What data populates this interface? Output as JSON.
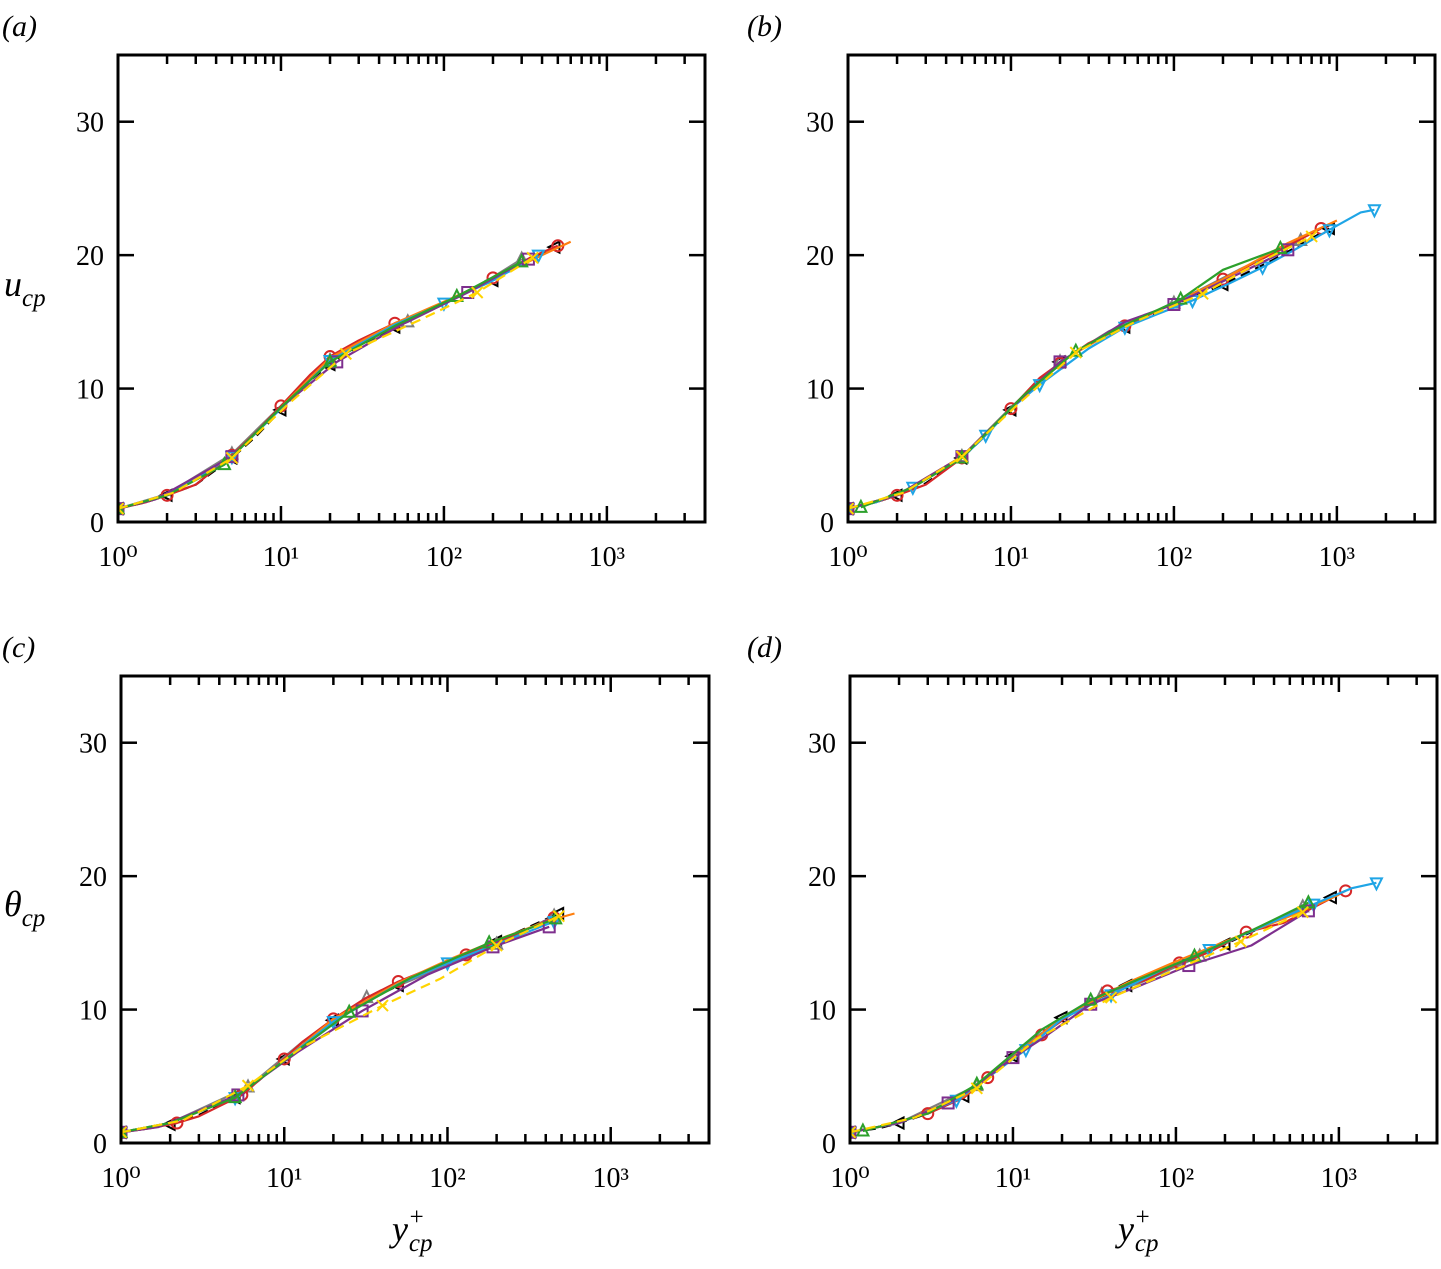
{
  "figure": {
    "panel_tags": [
      "(a)",
      "(b)",
      "(c)",
      "(d)"
    ],
    "y_labels": {
      "top_row": "u_cp",
      "bottom_row": "θ_cp"
    },
    "x_label": "y+_cp"
  },
  "chart_data": [
    {
      "type": "line",
      "panel": "(a)",
      "xlabel": "y+_cp",
      "ylabel": "u_cp",
      "xscale": "log",
      "xlim": [
        1,
        4000
      ],
      "ylim": [
        0,
        35
      ],
      "xticks": [
        "10^0",
        "10^1",
        "10^2",
        "10^3"
      ],
      "yticks": [
        "0",
        "10",
        "20",
        "30"
      ],
      "grid": false,
      "series": [
        {
          "color": "#000000",
          "marker": "triangle-left",
          "dashed": true,
          "x": [
            1,
            1.5,
            2,
            3,
            5,
            7,
            10,
            15,
            20,
            30,
            50,
            100,
            200,
            300,
            480
          ],
          "y": [
            1.0,
            1.5,
            2.0,
            2.8,
            4.8,
            6.4,
            8.4,
            10.6,
            11.8,
            13.2,
            14.6,
            16.4,
            18.1,
            19.3,
            20.6
          ]
        },
        {
          "color": "#7f7f7f",
          "marker": "triangle-up",
          "x": [
            1,
            2,
            5,
            10,
            20,
            30,
            60,
            150,
            300
          ],
          "y": [
            1.0,
            2.1,
            5.1,
            8.7,
            12.1,
            13.5,
            15.0,
            17.4,
            19.7
          ]
        },
        {
          "color": "#d62728",
          "marker": "circle",
          "x": [
            1,
            1.5,
            2,
            3,
            5,
            7,
            10,
            15,
            20,
            30,
            50,
            100,
            200,
            350,
            500
          ],
          "y": [
            1.0,
            1.5,
            2.0,
            2.8,
            5.0,
            6.7,
            8.7,
            11.0,
            12.4,
            13.6,
            14.9,
            16.4,
            18.3,
            19.9,
            20.7
          ]
        },
        {
          "color": "#ff7f0e",
          "marker": "none",
          "x": [
            1,
            2,
            5,
            10,
            20,
            50,
            100,
            200,
            400,
            600
          ],
          "y": [
            1.0,
            2.0,
            4.9,
            8.6,
            12.3,
            14.9,
            16.5,
            18.2,
            20.0,
            21.0
          ]
        },
        {
          "color": "#1fa5e6",
          "marker": "triangle-down",
          "x": [
            1,
            2,
            5,
            10,
            20,
            50,
            100,
            200,
            380
          ],
          "y": [
            1.0,
            2.0,
            4.9,
            8.5,
            12.1,
            14.8,
            16.4,
            18.1,
            20.0
          ]
        },
        {
          "color": "#7e2f8e",
          "marker": "square",
          "x": [
            1,
            1.7,
            5,
            10,
            22,
            55,
            140,
            330
          ],
          "y": [
            1.0,
            1.7,
            4.9,
            8.6,
            12.0,
            14.8,
            17.2,
            19.7
          ]
        },
        {
          "color": "#2ca02c",
          "marker": "triangle-up",
          "x": [
            1,
            2,
            4.5,
            10,
            20,
            50,
            120,
            300
          ],
          "y": [
            1.0,
            2.0,
            4.3,
            8.6,
            12.0,
            14.7,
            16.9,
            19.5
          ]
        },
        {
          "color": "#ffd400",
          "marker": "x",
          "dashed": true,
          "x": [
            1,
            2.2,
            5,
            11,
            25,
            70,
            160,
            350
          ],
          "y": [
            1.0,
            2.2,
            4.8,
            8.8,
            12.6,
            15.1,
            17.2,
            19.8
          ]
        }
      ]
    },
    {
      "type": "line",
      "panel": "(b)",
      "xlabel": "",
      "ylabel": "",
      "xscale": "log",
      "xlim": [
        1,
        4000
      ],
      "ylim": [
        0,
        35
      ],
      "xticks": [
        "10^0",
        "10^1",
        "10^2",
        "10^3"
      ],
      "yticks": [
        "0",
        "10",
        "20",
        "30"
      ],
      "grid": false,
      "series": [
        {
          "color": "#000000",
          "marker": "triangle-left",
          "dashed": true,
          "x": [
            1,
            1.5,
            2,
            3,
            5,
            7,
            10,
            15,
            20,
            30,
            50,
            100,
            200,
            400,
            900
          ],
          "y": [
            1.0,
            1.5,
            2.0,
            2.9,
            4.8,
            6.5,
            8.4,
            10.6,
            12.0,
            13.3,
            14.6,
            16.3,
            17.8,
            19.6,
            22.0
          ]
        },
        {
          "color": "#7f7f7f",
          "marker": "triangle-up",
          "x": [
            1,
            2,
            5,
            10,
            20,
            40,
            100,
            250,
            600
          ],
          "y": [
            1.0,
            2.0,
            4.9,
            8.6,
            12.0,
            14.3,
            16.4,
            18.9,
            21.1
          ]
        },
        {
          "color": "#d62728",
          "marker": "circle",
          "x": [
            1,
            1.5,
            2,
            3,
            5,
            7,
            10,
            15,
            20,
            30,
            50,
            100,
            200,
            400,
            800
          ],
          "y": [
            1.0,
            1.5,
            2.0,
            2.8,
            4.8,
            6.6,
            8.5,
            10.8,
            11.9,
            13.4,
            14.7,
            16.4,
            18.2,
            20.1,
            22.0
          ]
        },
        {
          "color": "#ff7f0e",
          "marker": "none",
          "x": [
            1,
            2,
            5,
            10,
            20,
            50,
            100,
            200,
            500,
            1000
          ],
          "y": [
            1.0,
            2.0,
            4.9,
            8.5,
            12.0,
            14.8,
            16.4,
            18.2,
            20.9,
            22.6
          ]
        },
        {
          "color": "#1fa5e6",
          "marker": "triangle-down",
          "x": [
            1,
            1.5,
            2.5,
            5,
            7,
            10,
            15,
            30,
            50,
            80,
            130,
            220,
            350,
            550,
            900,
            1400,
            1700
          ],
          "y": [
            1.0,
            1.5,
            2.6,
            4.8,
            6.5,
            8.5,
            10.3,
            13.0,
            14.6,
            15.6,
            16.6,
            17.9,
            19.1,
            20.4,
            21.9,
            23.2,
            23.4
          ]
        },
        {
          "color": "#7e2f8e",
          "marker": "square",
          "x": [
            1,
            2,
            5,
            10,
            20,
            50,
            100,
            250,
            500
          ],
          "y": [
            1.0,
            2.0,
            4.9,
            8.5,
            12.0,
            15.0,
            16.3,
            18.6,
            20.4
          ]
        },
        {
          "color": "#2ca02c",
          "marker": "triangle-up",
          "x": [
            1.2,
            2.5,
            5,
            12,
            25,
            45,
            110,
            200,
            450
          ],
          "y": [
            1.1,
            2.6,
            4.8,
            9.5,
            12.8,
            14.5,
            16.7,
            18.9,
            20.5
          ]
        },
        {
          "color": "#ffd400",
          "marker": "x",
          "dashed": true,
          "x": [
            1,
            2.2,
            5,
            11,
            25,
            60,
            150,
            350,
            700
          ],
          "y": [
            1.0,
            2.2,
            4.9,
            8.8,
            12.7,
            15.1,
            17.1,
            19.6,
            21.4
          ]
        }
      ]
    },
    {
      "type": "line",
      "panel": "(c)",
      "xlabel": "y+_cp",
      "ylabel": "θ_cp",
      "xscale": "log",
      "xlim": [
        1,
        4000
      ],
      "ylim": [
        0,
        35
      ],
      "xticks": [
        "10^0",
        "10^1",
        "10^2",
        "10^3"
      ],
      "yticks": [
        "0",
        "10",
        "20",
        "30"
      ],
      "grid": false,
      "series": [
        {
          "color": "#000000",
          "marker": "triangle-left",
          "dashed": true,
          "x": [
            1,
            1.5,
            2,
            3,
            5,
            7,
            10,
            15,
            20,
            30,
            50,
            100,
            200,
            480
          ],
          "y": [
            0.8,
            1.1,
            1.4,
            2.1,
            3.4,
            4.7,
            6.3,
            8.1,
            9.2,
            10.5,
            11.8,
            13.5,
            15.1,
            17.2
          ]
        },
        {
          "color": "#7f7f7f",
          "marker": "triangle-up",
          "x": [
            1,
            2,
            6,
            13,
            32,
            60,
            200,
            450
          ],
          "y": [
            0.8,
            1.5,
            4.2,
            7.6,
            10.9,
            12.2,
            14.9,
            17.0
          ]
        },
        {
          "color": "#d62728",
          "marker": "circle",
          "x": [
            1,
            1.5,
            2.2,
            3,
            5.5,
            7,
            10,
            13,
            20,
            31,
            50,
            80,
            130,
            215,
            450
          ],
          "y": [
            0.8,
            1.1,
            1.5,
            2.0,
            3.6,
            4.7,
            6.3,
            7.6,
            9.3,
            10.8,
            12.1,
            13.1,
            14.1,
            15.2,
            16.9
          ]
        },
        {
          "color": "#ff7f0e",
          "marker": "none",
          "x": [
            1,
            2,
            5,
            10,
            20,
            50,
            100,
            200,
            400,
            600
          ],
          "y": [
            0.8,
            1.5,
            3.4,
            6.2,
            9.3,
            12.0,
            13.7,
            15.2,
            16.6,
            17.2
          ]
        },
        {
          "color": "#1fa5e6",
          "marker": "triangle-down",
          "x": [
            1,
            2,
            5,
            10,
            20,
            50,
            100,
            200,
            450
          ],
          "y": [
            0.8,
            1.5,
            3.4,
            6.2,
            9.1,
            11.9,
            13.5,
            14.9,
            16.6
          ]
        },
        {
          "color": "#7e2f8e",
          "marker": "square",
          "x": [
            1,
            1.7,
            5.2,
            12,
            30,
            75,
            190,
            420
          ],
          "y": [
            0.8,
            1.2,
            3.6,
            6.8,
            9.9,
            12.6,
            14.7,
            16.2
          ]
        },
        {
          "color": "#2ca02c",
          "marker": "triangle-up",
          "x": [
            1,
            2,
            5,
            12,
            25,
            60,
            180,
            460
          ],
          "y": [
            0.8,
            1.5,
            3.4,
            6.9,
            9.8,
            12.4,
            15.0,
            16.8
          ]
        },
        {
          "color": "#ffd400",
          "marker": "x",
          "dashed": true,
          "x": [
            1,
            2.4,
            6,
            13,
            40,
            90,
            200,
            480
          ],
          "y": [
            0.8,
            1.7,
            4.3,
            7.2,
            10.3,
            12.3,
            14.8,
            17.0
          ]
        }
      ]
    },
    {
      "type": "line",
      "panel": "(d)",
      "xlabel": "y+_cp",
      "ylabel": "",
      "xscale": "log",
      "xlim": [
        1,
        4000
      ],
      "ylim": [
        0,
        35
      ],
      "xticks": [
        "10^0",
        "10^1",
        "10^2",
        "10^3"
      ],
      "yticks": [
        "0",
        "10",
        "20",
        "30"
      ],
      "grid": false,
      "series": [
        {
          "color": "#000000",
          "marker": "triangle-left",
          "dashed": true,
          "x": [
            1,
            1.5,
            2,
            3,
            5,
            7,
            10,
            15,
            20,
            30,
            50,
            100,
            200,
            400,
            900
          ],
          "y": [
            0.8,
            1.1,
            1.5,
            2.2,
            3.5,
            5.0,
            6.5,
            8.2,
            9.4,
            10.6,
            11.8,
            13.3,
            14.9,
            16.6,
            18.4
          ]
        },
        {
          "color": "#7f7f7f",
          "marker": "triangle-up",
          "x": [
            1,
            2,
            6,
            14,
            35,
            60,
            140,
            300,
            600
          ],
          "y": [
            0.8,
            1.5,
            4.3,
            8.0,
            11.1,
            12.0,
            14.0,
            16.0,
            17.7
          ]
        },
        {
          "color": "#d62728",
          "marker": "circle",
          "x": [
            1,
            1.5,
            3,
            5,
            7,
            10,
            15,
            23,
            38,
            65,
            105,
            160,
            270,
            460,
            1100
          ],
          "y": [
            0.8,
            1.2,
            2.2,
            3.4,
            4.9,
            6.3,
            8.1,
            9.7,
            11.4,
            12.2,
            13.5,
            14.3,
            15.8,
            16.5,
            18.9
          ]
        },
        {
          "color": "#ff7f0e",
          "marker": "none",
          "x": [
            1,
            2,
            5,
            10,
            20,
            50,
            100,
            200,
            500,
            1000
          ],
          "y": [
            0.8,
            1.5,
            3.5,
            6.4,
            9.4,
            12.0,
            13.6,
            15.1,
            17.0,
            18.6
          ]
        },
        {
          "color": "#1fa5e6",
          "marker": "triangle-down",
          "x": [
            1,
            2,
            4.5,
            7,
            12,
            20,
            40,
            80,
            160,
            350,
            700,
            1200,
            1700
          ],
          "y": [
            0.8,
            1.5,
            3.2,
            4.9,
            7.0,
            9.3,
            11.1,
            12.9,
            14.5,
            16.3,
            17.9,
            19.1,
            19.5
          ]
        },
        {
          "color": "#7e2f8e",
          "marker": "square",
          "x": [
            1,
            2,
            4,
            6,
            10,
            15,
            30,
            55,
            120,
            290,
            650
          ],
          "y": [
            0.8,
            1.5,
            3.0,
            4.3,
            6.4,
            7.8,
            10.4,
            11.6,
            13.3,
            14.8,
            17.4
          ]
        },
        {
          "color": "#2ca02c",
          "marker": "triangle-up",
          "x": [
            1.2,
            3,
            6,
            15,
            30,
            50,
            130,
            300,
            650
          ],
          "y": [
            0.9,
            2.2,
            4.4,
            8.5,
            10.7,
            11.9,
            14.0,
            16.0,
            18.0
          ]
        },
        {
          "color": "#ffd400",
          "marker": "x",
          "dashed": true,
          "x": [
            1,
            2.5,
            6,
            14,
            40,
            100,
            250,
            600
          ],
          "y": [
            0.8,
            1.9,
            4.1,
            7.8,
            10.9,
            13.0,
            15.1,
            17.3
          ]
        }
      ]
    }
  ]
}
